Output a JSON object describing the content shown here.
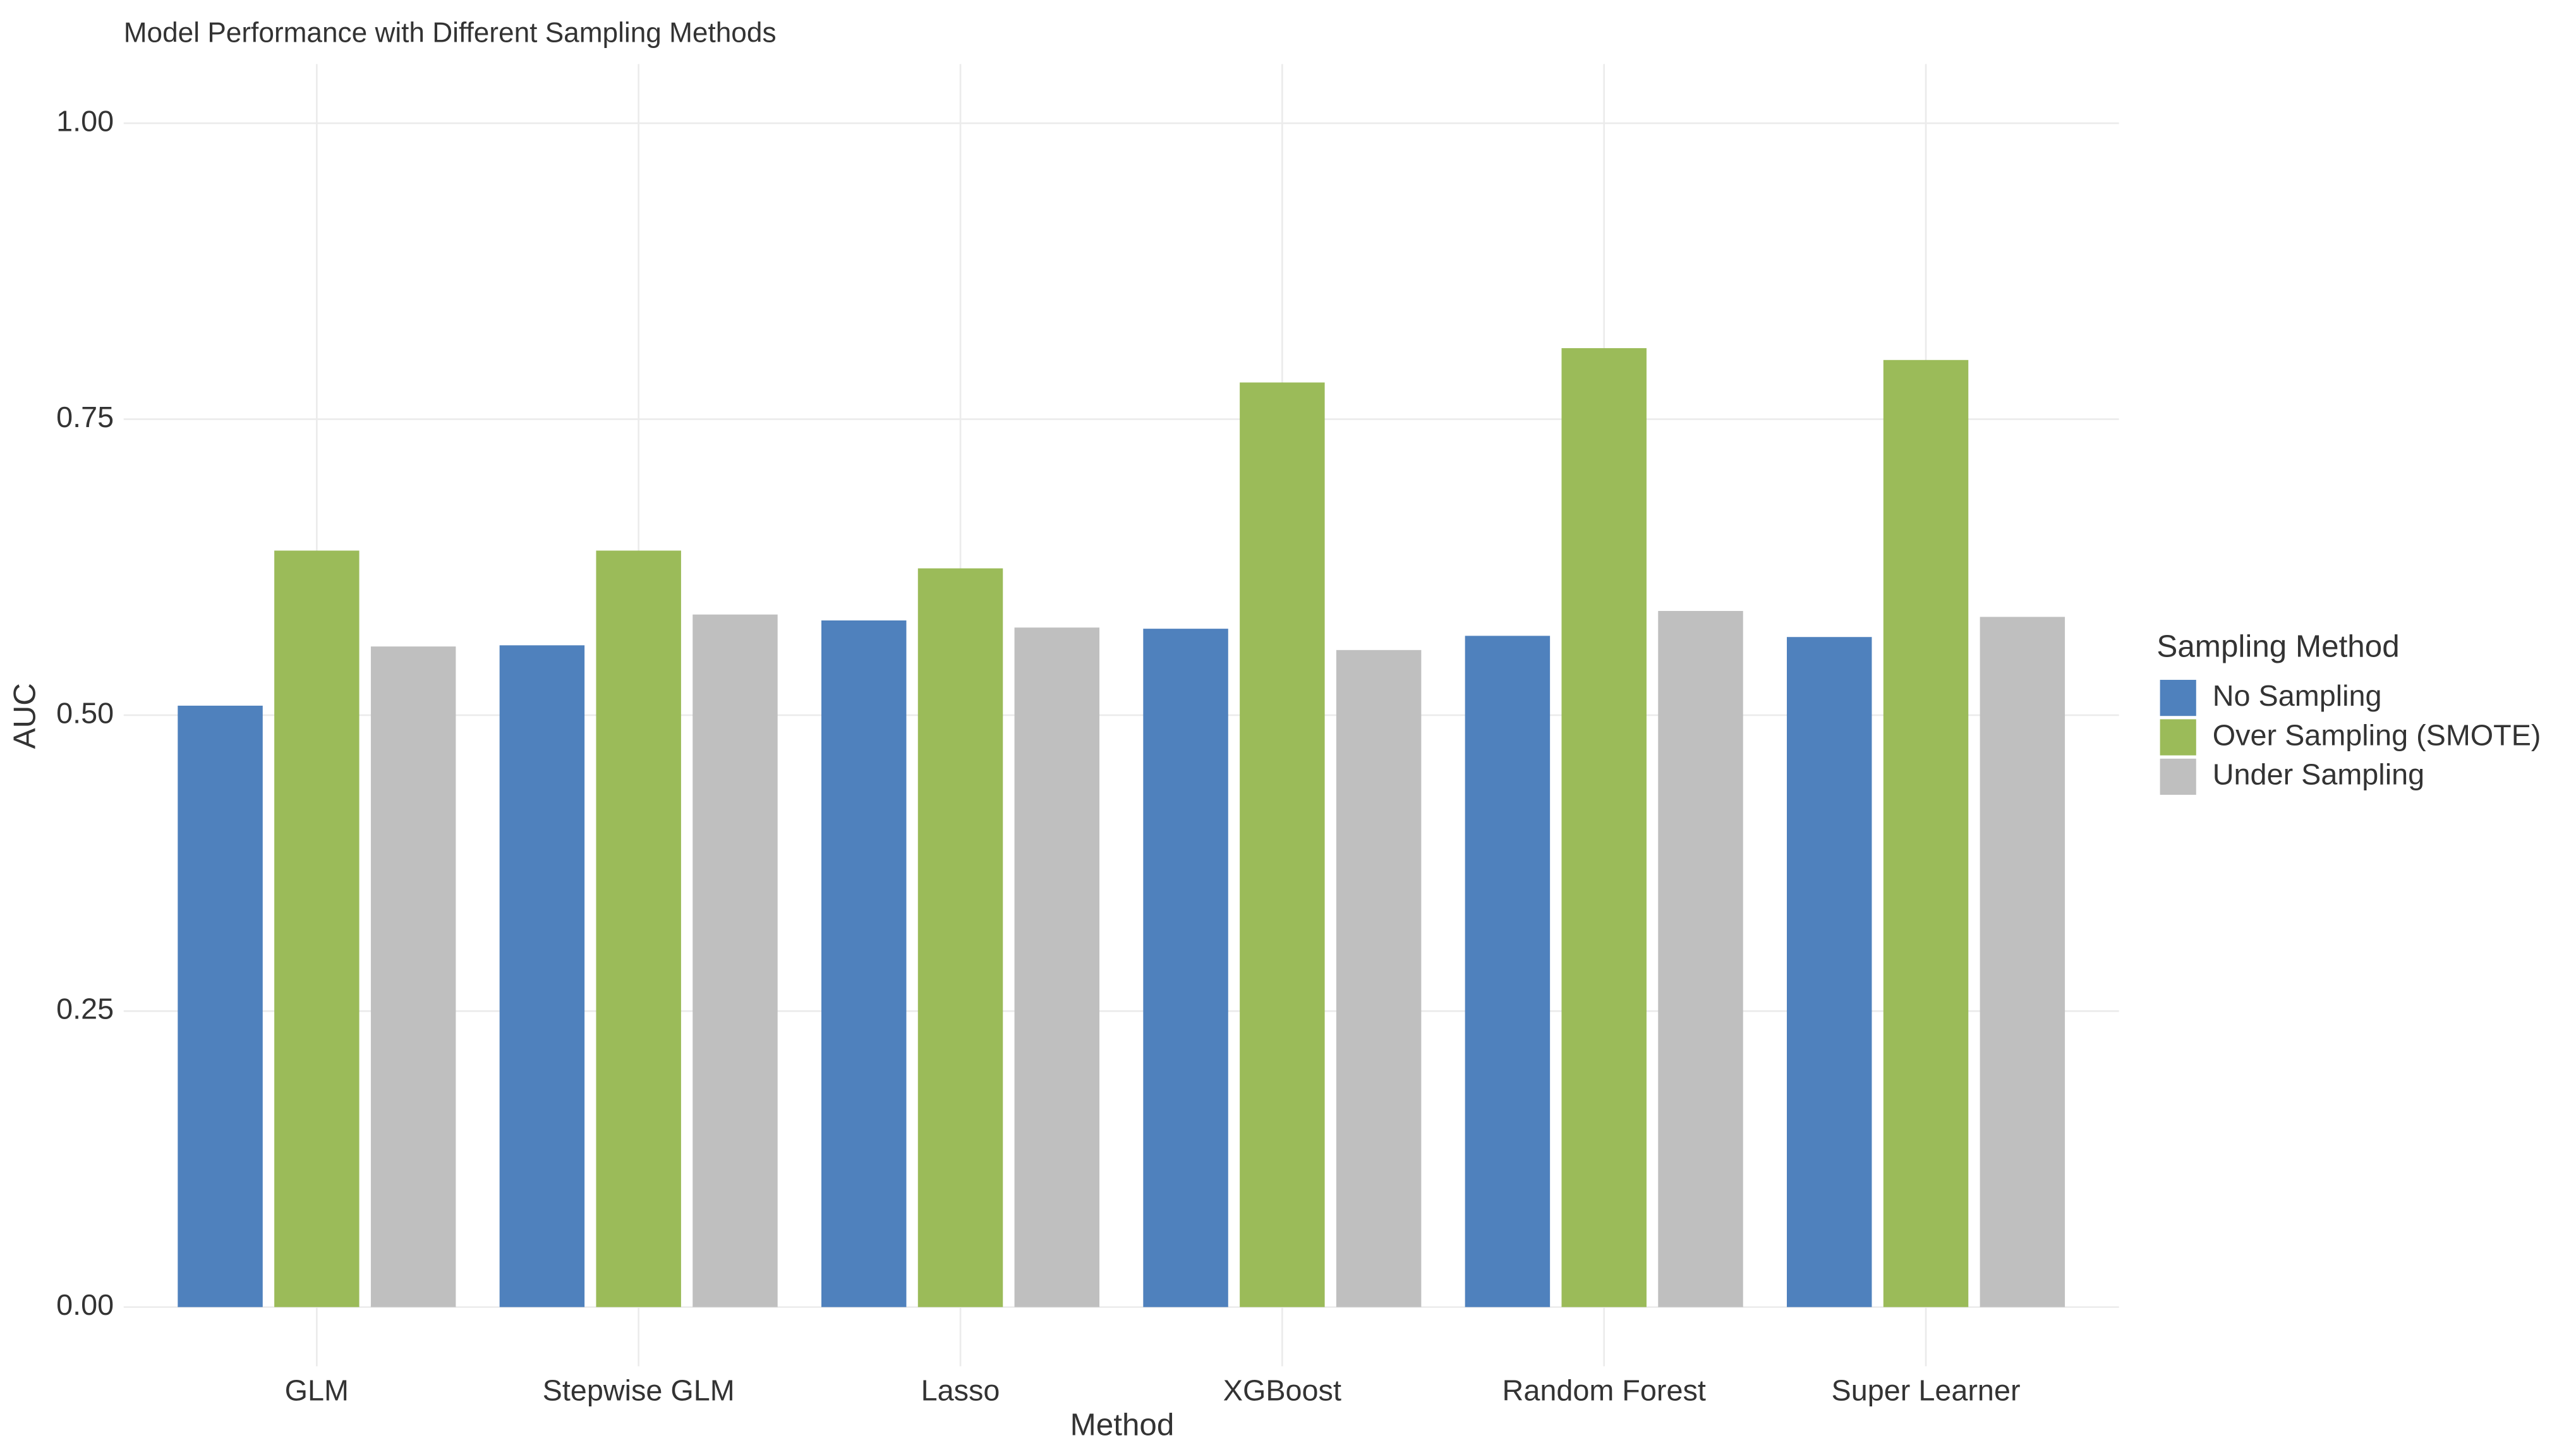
{
  "chart_data": {
    "type": "bar",
    "title": "Model Performance with Different Sampling Methods",
    "x_label": "Method",
    "y_label": "AUC",
    "legend_title": "Sampling Method",
    "legend_position": "right",
    "grid": true,
    "categories": [
      "GLM",
      "Stepwise GLM",
      "Lasso",
      "XGBoost",
      "Random Forest",
      "Super Learner"
    ],
    "series": [
      {
        "name": "No Sampling",
        "color": "#4f81bd",
        "values": [
          0.508,
          0.559,
          0.58,
          0.573,
          0.567,
          0.566
        ]
      },
      {
        "name": "Over Sampling (SMOTE)",
        "color": "#9bbb59",
        "values": [
          0.639,
          0.639,
          0.624,
          0.781,
          0.81,
          0.8
        ]
      },
      {
        "name": "Under Sampling",
        "color": "#bfbfbf",
        "values": [
          0.558,
          0.585,
          0.574,
          0.555,
          0.588,
          0.583
        ]
      }
    ],
    "ylim": [
      -0.05,
      1.05
    ],
    "yticks": [
      {
        "value": 0,
        "label": "0.00"
      },
      {
        "value": 0.25,
        "label": "0.25"
      },
      {
        "value": 0.5,
        "label": "0.50"
      },
      {
        "value": 0.75,
        "label": "0.75"
      },
      {
        "value": 1,
        "label": "1.00"
      }
    ]
  }
}
